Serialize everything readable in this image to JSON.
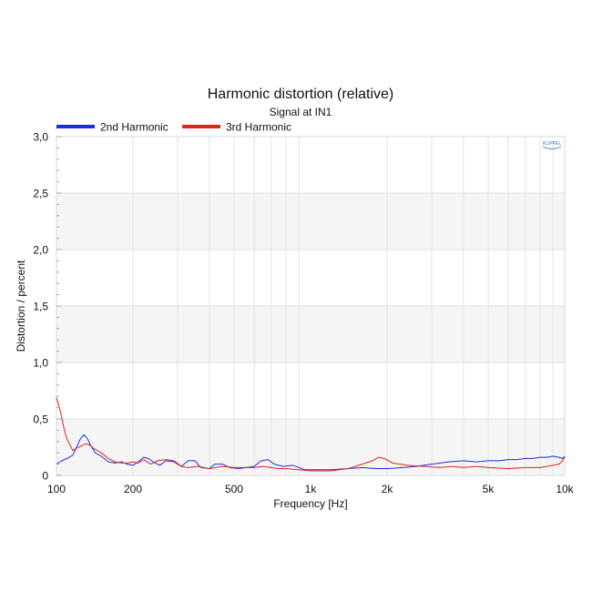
{
  "chart_data": {
    "type": "line",
    "title": "Harmonic distortion (relative)",
    "subtitle": "Signal at IN1",
    "xlabel": "Frequency [Hz]",
    "ylabel": "Distortion / percent",
    "x_scale": "log",
    "xlim": [
      100,
      10000
    ],
    "ylim": [
      0,
      3.0
    ],
    "x_ticks": [
      {
        "value": 100,
        "label": "100"
      },
      {
        "value": 200,
        "label": "200"
      },
      {
        "value": 500,
        "label": "500"
      },
      {
        "value": 1000,
        "label": "1k"
      },
      {
        "value": 2000,
        "label": "2k"
      },
      {
        "value": 5000,
        "label": "5k"
      },
      {
        "value": 10000,
        "label": "10k"
      }
    ],
    "y_ticks": [
      {
        "value": 0,
        "label": "0"
      },
      {
        "value": 0.5,
        "label": "0,5"
      },
      {
        "value": 1.0,
        "label": "1,0"
      },
      {
        "value": 1.5,
        "label": "1,5"
      },
      {
        "value": 2.0,
        "label": "2,0"
      },
      {
        "value": 2.5,
        "label": "2,5"
      },
      {
        "value": 3.0,
        "label": "3,0"
      }
    ],
    "grid": true,
    "banded_background": true,
    "legend_position": "top-left",
    "logo_text": "KLIPPEL",
    "series": [
      {
        "name": "2nd Harmonic",
        "color": "#1a2fe0",
        "points": [
          [
            100,
            0.1
          ],
          [
            105,
            0.13
          ],
          [
            110,
            0.15
          ],
          [
            116,
            0.18
          ],
          [
            120,
            0.25
          ],
          [
            124,
            0.32
          ],
          [
            128,
            0.36
          ],
          [
            132,
            0.33
          ],
          [
            136,
            0.27
          ],
          [
            142,
            0.2
          ],
          [
            150,
            0.17
          ],
          [
            160,
            0.12
          ],
          [
            170,
            0.11
          ],
          [
            180,
            0.12
          ],
          [
            190,
            0.1
          ],
          [
            200,
            0.09
          ],
          [
            210,
            0.12
          ],
          [
            220,
            0.16
          ],
          [
            230,
            0.15
          ],
          [
            240,
            0.12
          ],
          [
            255,
            0.09
          ],
          [
            270,
            0.13
          ],
          [
            290,
            0.12
          ],
          [
            310,
            0.08
          ],
          [
            330,
            0.13
          ],
          [
            350,
            0.13
          ],
          [
            370,
            0.07
          ],
          [
            400,
            0.06
          ],
          [
            420,
            0.1
          ],
          [
            450,
            0.1
          ],
          [
            480,
            0.07
          ],
          [
            520,
            0.06
          ],
          [
            560,
            0.07
          ],
          [
            600,
            0.08
          ],
          [
            640,
            0.13
          ],
          [
            680,
            0.14
          ],
          [
            720,
            0.1
          ],
          [
            780,
            0.08
          ],
          [
            850,
            0.09
          ],
          [
            950,
            0.05
          ],
          [
            1050,
            0.05
          ],
          [
            1200,
            0.05
          ],
          [
            1400,
            0.06
          ],
          [
            1600,
            0.07
          ],
          [
            1800,
            0.06
          ],
          [
            2000,
            0.06
          ],
          [
            2300,
            0.07
          ],
          [
            2600,
            0.08
          ],
          [
            3000,
            0.1
          ],
          [
            3500,
            0.12
          ],
          [
            4000,
            0.13
          ],
          [
            4500,
            0.12
          ],
          [
            5000,
            0.13
          ],
          [
            5500,
            0.13
          ],
          [
            6000,
            0.14
          ],
          [
            6500,
            0.14
          ],
          [
            7000,
            0.15
          ],
          [
            7500,
            0.15
          ],
          [
            8000,
            0.16
          ],
          [
            8500,
            0.16
          ],
          [
            9000,
            0.17
          ],
          [
            9500,
            0.16
          ],
          [
            9800,
            0.15
          ],
          [
            10000,
            0.17
          ]
        ]
      },
      {
        "name": "3rd Harmonic",
        "color": "#e1231d",
        "points": [
          [
            100,
            0.69
          ],
          [
            102,
            0.62
          ],
          [
            104,
            0.55
          ],
          [
            106,
            0.46
          ],
          [
            108,
            0.38
          ],
          [
            110,
            0.32
          ],
          [
            113,
            0.27
          ],
          [
            116,
            0.22
          ],
          [
            120,
            0.24
          ],
          [
            125,
            0.26
          ],
          [
            130,
            0.28
          ],
          [
            135,
            0.27
          ],
          [
            140,
            0.24
          ],
          [
            150,
            0.2
          ],
          [
            160,
            0.15
          ],
          [
            170,
            0.12
          ],
          [
            180,
            0.11
          ],
          [
            190,
            0.11
          ],
          [
            200,
            0.12
          ],
          [
            210,
            0.11
          ],
          [
            220,
            0.14
          ],
          [
            235,
            0.1
          ],
          [
            250,
            0.13
          ],
          [
            270,
            0.14
          ],
          [
            290,
            0.13
          ],
          [
            310,
            0.08
          ],
          [
            330,
            0.07
          ],
          [
            360,
            0.08
          ],
          [
            380,
            0.07
          ],
          [
            400,
            0.06
          ],
          [
            450,
            0.08
          ],
          [
            500,
            0.07
          ],
          [
            550,
            0.07
          ],
          [
            600,
            0.07
          ],
          [
            650,
            0.08
          ],
          [
            700,
            0.07
          ],
          [
            750,
            0.06
          ],
          [
            800,
            0.06
          ],
          [
            900,
            0.05
          ],
          [
            1000,
            0.04
          ],
          [
            1200,
            0.04
          ],
          [
            1400,
            0.06
          ],
          [
            1600,
            0.1
          ],
          [
            1750,
            0.13
          ],
          [
            1850,
            0.16
          ],
          [
            1950,
            0.15
          ],
          [
            2100,
            0.11
          ],
          [
            2400,
            0.09
          ],
          [
            2800,
            0.08
          ],
          [
            3200,
            0.07
          ],
          [
            3600,
            0.08
          ],
          [
            4000,
            0.07
          ],
          [
            4500,
            0.08
          ],
          [
            5000,
            0.07
          ],
          [
            6000,
            0.06
          ],
          [
            7000,
            0.07
          ],
          [
            8000,
            0.07
          ],
          [
            9000,
            0.09
          ],
          [
            9500,
            0.1
          ],
          [
            9800,
            0.13
          ],
          [
            10000,
            0.16
          ]
        ]
      }
    ]
  }
}
